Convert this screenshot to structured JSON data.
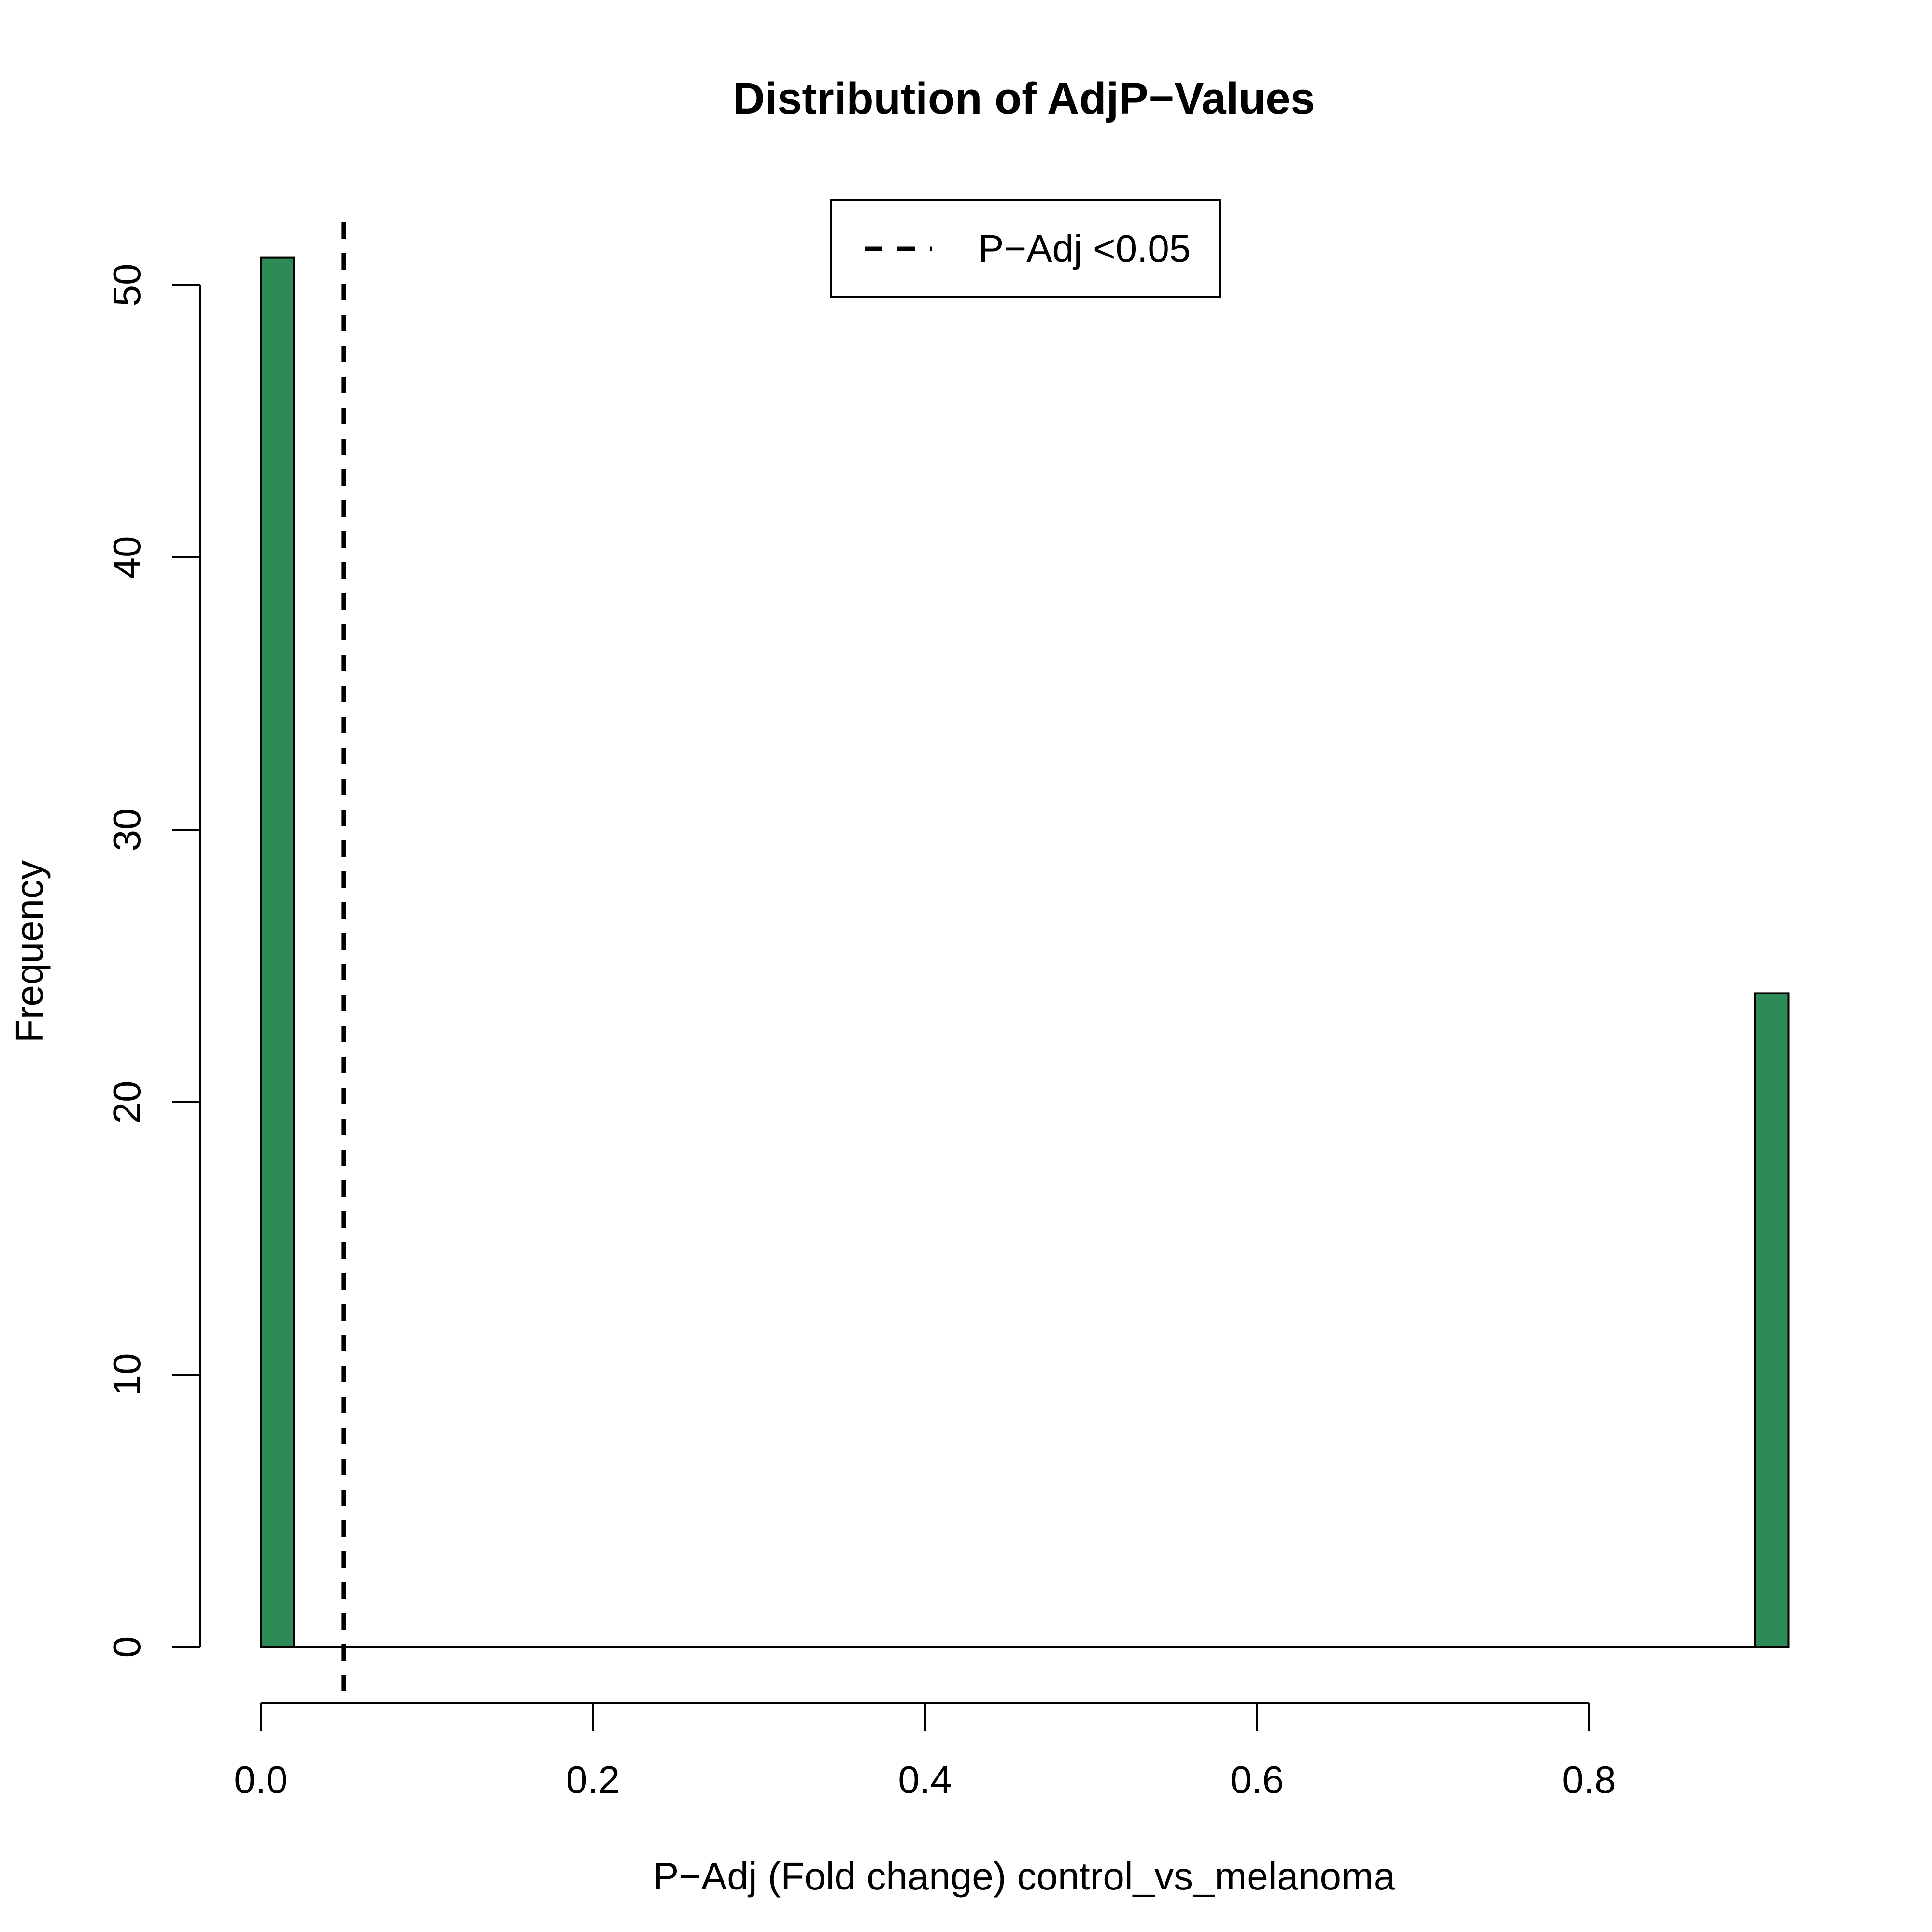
{
  "chart_data": {
    "type": "bar",
    "title": "Distribution of AdjP−Values",
    "xlabel": "P−Adj (Fold change) control_vs_melanoma",
    "ylabel": "Frequency",
    "bin_width": 0.02,
    "bins": [
      {
        "x_start": 0.0,
        "x_end": 0.02,
        "count": 51
      },
      {
        "x_start": 0.9,
        "x_end": 0.92,
        "count": 24
      }
    ],
    "xlim": [
      0.0,
      0.92
    ],
    "ylim": [
      0,
      51
    ],
    "x_ticks": [
      0.0,
      0.2,
      0.4,
      0.6,
      0.8
    ],
    "x_tick_labels": [
      "0.0",
      "0.2",
      "0.4",
      "0.6",
      "0.8"
    ],
    "y_ticks": [
      0,
      10,
      20,
      30,
      40,
      50
    ],
    "y_tick_labels": [
      "0",
      "10",
      "20",
      "30",
      "40",
      "50"
    ],
    "threshold": {
      "x": 0.05,
      "style": "dashed",
      "color": "#000000"
    },
    "legend": {
      "label": "P−Adj <0.05",
      "placement": "top-center",
      "line_style": "dashed"
    },
    "bar_color": "#2E8B57",
    "bar_edge_color": "#000000",
    "grid": false
  }
}
